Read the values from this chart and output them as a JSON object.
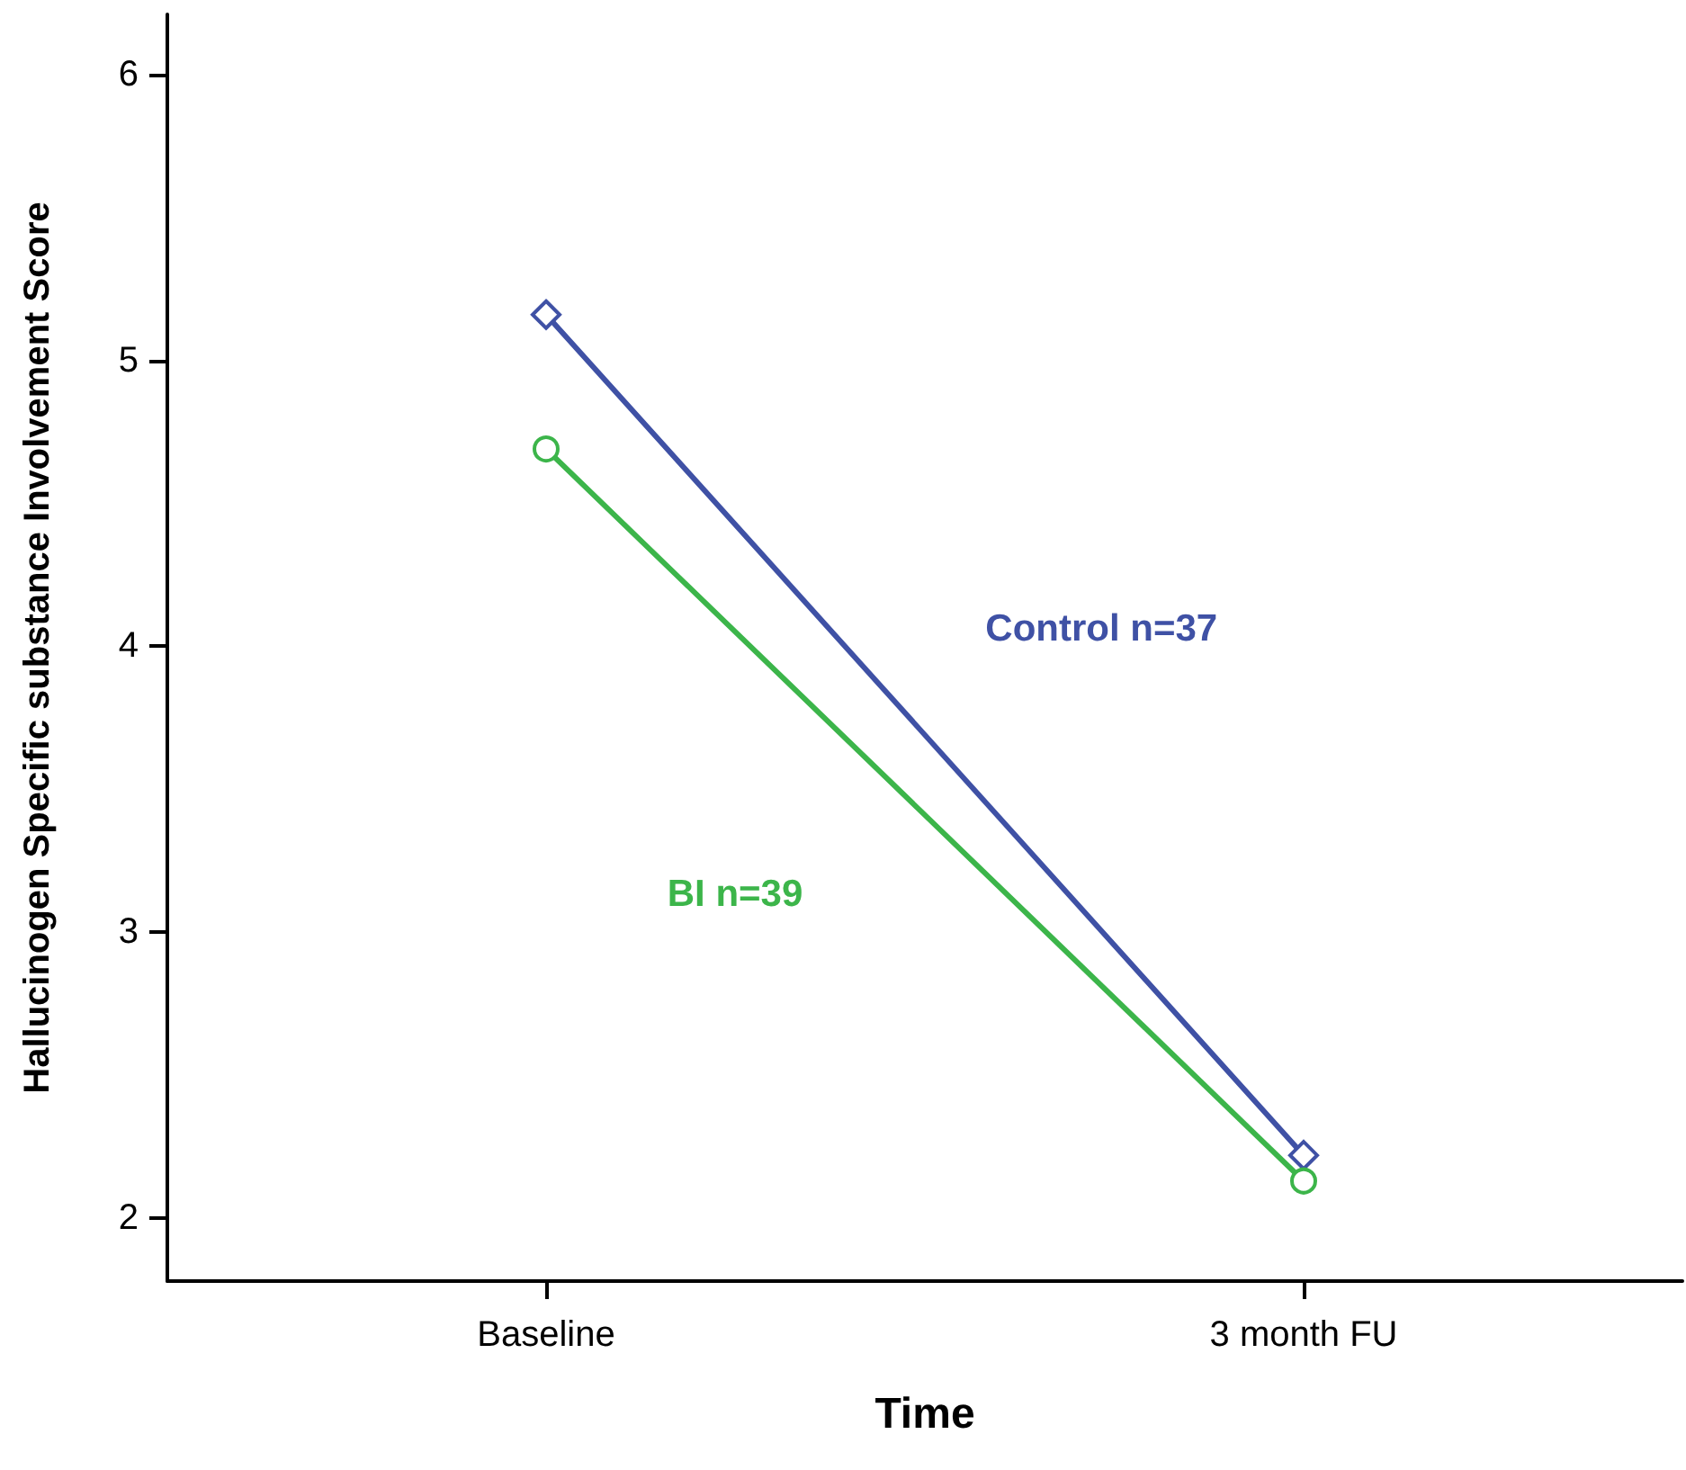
{
  "chart_data": {
    "type": "line",
    "xlabel": "Time",
    "ylabel": "Hallucinogen Specific substance Involvement Score",
    "categories": [
      "Baseline",
      "3 month FU"
    ],
    "series": [
      {
        "name": "Control n=37",
        "color": "#3f51a5",
        "values": [
          5.16,
          2.22
        ],
        "marker": "diamond"
      },
      {
        "name": "BI n=39",
        "color": "#3cb54a",
        "values": [
          4.69,
          2.13
        ],
        "marker": "circle"
      }
    ],
    "ylim": [
      1.78,
      6.21
    ],
    "yticks": [
      2,
      3,
      4,
      5,
      6
    ],
    "grid": false,
    "legend": false,
    "line_style": "solid"
  }
}
